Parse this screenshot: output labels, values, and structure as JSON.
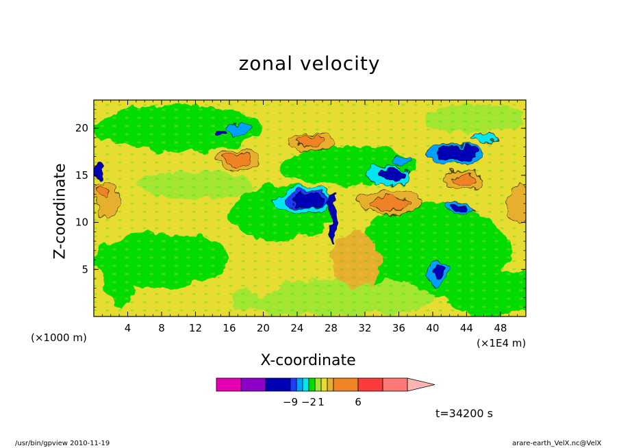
{
  "chart_data": {
    "type": "heatmap",
    "title": "zonal velocity",
    "xlabel": "X-coordinate",
    "ylabel": "Z-coordinate",
    "xlim": [
      0,
      51
    ],
    "ylim": [
      0,
      23
    ],
    "x_ticks": [
      "4",
      "8",
      "12",
      "16",
      "20",
      "24",
      "28",
      "32",
      "36",
      "40",
      "44",
      "48"
    ],
    "y_ticks": [
      "5",
      "10",
      "15",
      "20"
    ],
    "x_unit_left": "(×1000 m)",
    "x_unit_right": "(×1E4 m)",
    "colorbar": {
      "colors": [
        "#e600b4",
        "#8c00c8",
        "#0000b4",
        "#1e3cff",
        "#00a0ff",
        "#00e6f0",
        "#00dc00",
        "#a0e632",
        "#e6dc32",
        "#e6af2d",
        "#f08228",
        "#fa3c3c",
        "#ff7878"
      ],
      "arrow_color": "#ffb4b4",
      "labels": [
        {
          "text": "−9",
          "index": 2
        },
        {
          "text": "−2",
          "index": 5
        },
        {
          "text": "1",
          "index": 7
        },
        {
          "text": "6",
          "index": 10
        }
      ]
    },
    "blobs": [
      {
        "x": 25,
        "z": 12.3,
        "rx": 3.6,
        "rz": 1.3,
        "c": "#00e6f0"
      },
      {
        "x": 25.2,
        "z": 12.3,
        "rx": 2.6,
        "rz": 0.9,
        "c": "#1e3cff"
      },
      {
        "x": 25.4,
        "z": 12.2,
        "rx": 2.0,
        "rz": 0.7,
        "c": "#0000b4"
      },
      {
        "x": 17,
        "z": 16.6,
        "rx": 2.8,
        "rz": 1.1,
        "c": "#e6af2d"
      },
      {
        "x": 16.8,
        "z": 16.7,
        "rx": 1.8,
        "rz": 0.7,
        "c": "#f08228"
      },
      {
        "x": 25.6,
        "z": 18.5,
        "rx": 2.6,
        "rz": 1.0,
        "c": "#e6af2d"
      },
      {
        "x": 25.6,
        "z": 18.6,
        "rx": 1.8,
        "rz": 0.7,
        "c": "#f08228"
      },
      {
        "x": 35,
        "z": 12.1,
        "rx": 4.0,
        "rz": 1.2,
        "c": "#e6af2d"
      },
      {
        "x": 35,
        "z": 12.0,
        "rx": 2.6,
        "rz": 0.7,
        "c": "#f08228"
      },
      {
        "x": 35,
        "z": 15.0,
        "rx": 2.6,
        "rz": 1.0,
        "c": "#00e6f0"
      },
      {
        "x": 35.3,
        "z": 15.1,
        "rx": 1.8,
        "rz": 0.7,
        "c": "#0000b4"
      },
      {
        "x": 42.5,
        "z": 17.3,
        "rx": 3.2,
        "rz": 1.1,
        "c": "#00a0ff"
      },
      {
        "x": 42.8,
        "z": 17.4,
        "rx": 2.3,
        "rz": 0.8,
        "c": "#0000b4"
      },
      {
        "x": 43.6,
        "z": 14.4,
        "rx": 2.3,
        "rz": 1.2,
        "c": "#e6af2d"
      },
      {
        "x": 43.8,
        "z": 14.4,
        "rx": 1.4,
        "rz": 0.8,
        "c": "#f08228"
      },
      {
        "x": 50.2,
        "z": 12.0,
        "rx": 1.3,
        "rz": 2.0,
        "c": "#e6af2d"
      },
      {
        "x": 1.5,
        "z": 12.4,
        "rx": 1.6,
        "rz": 1.8,
        "c": "#e6af2d"
      },
      {
        "x": 1.2,
        "z": 13.2,
        "rx": 0.8,
        "rz": 0.6,
        "c": "#f08228"
      },
      {
        "x": 43,
        "z": 11.5,
        "rx": 1.8,
        "rz": 0.6,
        "c": "#00a0ff"
      },
      {
        "x": 43.2,
        "z": 11.5,
        "rx": 1.0,
        "rz": 0.35,
        "c": "#0000b4"
      },
      {
        "x": 40.5,
        "z": 4.5,
        "rx": 1.2,
        "rz": 1.2,
        "c": "#00a0ff"
      },
      {
        "x": 40.7,
        "z": 4.7,
        "rx": 0.6,
        "rz": 0.6,
        "c": "#0000b4"
      },
      {
        "x": 17,
        "z": 20.0,
        "rx": 1.2,
        "rz": 0.5,
        "c": "#00a0ff"
      },
      {
        "x": 15.2,
        "z": 19.5,
        "rx": 0.6,
        "rz": 0.35,
        "c": "#0000b4"
      },
      {
        "x": 0.6,
        "z": 15.5,
        "rx": 0.6,
        "rz": 1.0,
        "c": "#0000b4"
      },
      {
        "x": 36,
        "z": 16.6,
        "rx": 1.2,
        "rz": 0.5,
        "c": "#00a0ff"
      },
      {
        "x": 28.2,
        "z": 10.5,
        "rx": 0.5,
        "rz": 2.8,
        "c": "#0000b4"
      },
      {
        "x": 46,
        "z": 19.0,
        "rx": 1.4,
        "rz": 0.4,
        "c": "#00e6f0"
      }
    ]
  },
  "annotation": {
    "time": "t=34200 s",
    "footer_left": "/usr/bin/gpview   2010-11-19",
    "footer_right": "arare-earth_VelX.nc@VelX"
  }
}
